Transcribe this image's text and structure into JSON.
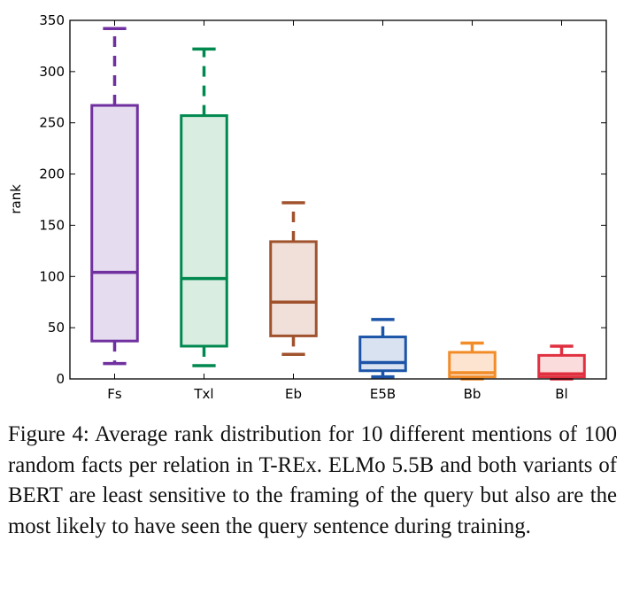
{
  "chart_data": {
    "type": "box",
    "title": "",
    "xlabel": "",
    "ylabel": "rank",
    "ylim": [
      0,
      350
    ],
    "yticks": [
      0,
      50,
      100,
      150,
      200,
      250,
      300,
      350
    ],
    "grid": false,
    "categories": [
      "Fs",
      "Txl",
      "Eb",
      "E5B",
      "Bb",
      "Bl"
    ],
    "boxes": [
      {
        "name": "Fs",
        "whisker_low": 15,
        "q1": 37,
        "median": 104,
        "q3": 267,
        "whisker_high": 342,
        "color": "#7030a0",
        "fill": "#e6dcef"
      },
      {
        "name": "Txl",
        "whisker_low": 13,
        "q1": 32,
        "median": 98,
        "q3": 257,
        "whisker_high": 322,
        "color": "#00894f",
        "fill": "#d9ede1"
      },
      {
        "name": "Eb",
        "whisker_low": 24,
        "q1": 42,
        "median": 75,
        "q3": 134,
        "whisker_high": 172,
        "color": "#a0522d",
        "fill": "#f0e0d9"
      },
      {
        "name": "E5B",
        "whisker_low": 2,
        "q1": 8,
        "median": 16,
        "q3": 41,
        "whisker_high": 58,
        "color": "#1c55a8",
        "fill": "#d9e2f0"
      },
      {
        "name": "Bb",
        "whisker_low": 0,
        "q1": 2,
        "median": 6,
        "q3": 26,
        "whisker_high": 35,
        "color": "#f28c28",
        "fill": "#fde4d0"
      },
      {
        "name": "Bl",
        "whisker_low": 0,
        "q1": 2,
        "median": 5,
        "q3": 23,
        "whisker_high": 32,
        "color": "#e03040",
        "fill": "#fbdcdc"
      }
    ]
  },
  "caption": "Figure 4:  Average rank distribution for 10 different mentions of 100 random facts per relation in T-REx. ELMo 5.5B and both variants of BERT are least sensitive to the framing of the query but also are the most likely to have seen the query sentence during training."
}
